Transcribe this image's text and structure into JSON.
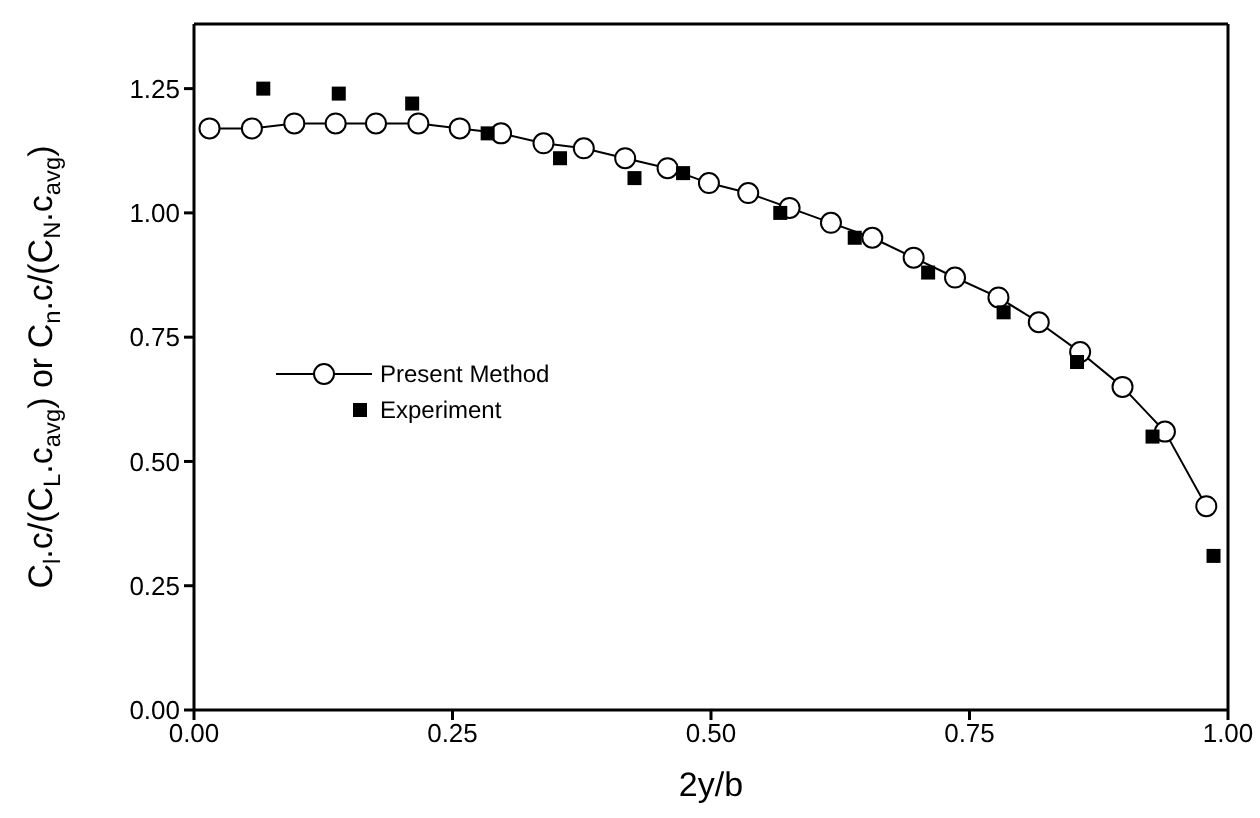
{
  "chart_data": {
    "type": "line",
    "xlabel": "2y/b",
    "ylabel": "C$_{l}$.c/(C$_{L}$.c$_{avg}$) or C$_{n}$.c/(C$_{N}$.c$_{avg}$)",
    "xlim": [
      0,
      1
    ],
    "xticks": [
      {
        "value": 0,
        "label": "0.00"
      },
      {
        "value": 0.25,
        "label": "0.25"
      },
      {
        "value": 0.5,
        "label": "0.50"
      },
      {
        "value": 0.75,
        "label": "0.75"
      },
      {
        "value": 1,
        "label": "1.00"
      }
    ],
    "ylim": [
      0,
      1.38
    ],
    "yticks": [
      {
        "value": 0,
        "label": "0.00"
      },
      {
        "value": 0.25,
        "label": "0.25"
      },
      {
        "value": 0.5,
        "label": "0.50"
      },
      {
        "value": 0.75,
        "label": "0.75"
      },
      {
        "value": 1,
        "label": "1.00"
      },
      {
        "value": 1.25,
        "label": "1.25"
      }
    ],
    "grid": false,
    "legend": "left",
    "series": [
      {
        "name": "Present Method",
        "marker": "circle",
        "line_style": "solid",
        "color": "#000000",
        "x": [
          0.015,
          0.056,
          0.097,
          0.137,
          0.176,
          0.217,
          0.257,
          0.297,
          0.338,
          0.377,
          0.417,
          0.458,
          0.498,
          0.536,
          0.576,
          0.616,
          0.656,
          0.696,
          0.736,
          0.778,
          0.817,
          0.857,
          0.898,
          0.939,
          0.979
        ],
        "values": [
          1.17,
          1.17,
          1.18,
          1.18,
          1.18,
          1.18,
          1.17,
          1.16,
          1.14,
          1.13,
          1.11,
          1.09,
          1.06,
          1.04,
          1.01,
          0.98,
          0.95,
          0.91,
          0.87,
          0.83,
          0.78,
          0.72,
          0.65,
          0.56,
          0.41
        ]
      },
      {
        "name": "Experiment",
        "type": "scatter",
        "marker": "square",
        "color": "#000000",
        "x": [
          0.067,
          0.14,
          0.211,
          0.284,
          0.354,
          0.426,
          0.473,
          0.567,
          0.639,
          0.71,
          0.783,
          0.854,
          0.927,
          0.986
        ],
        "values": [
          1.25,
          1.24,
          1.22,
          1.16,
          1.11,
          1.07,
          1.08,
          1.0,
          0.95,
          0.88,
          0.8,
          0.7,
          0.55,
          0.31
        ]
      }
    ]
  }
}
